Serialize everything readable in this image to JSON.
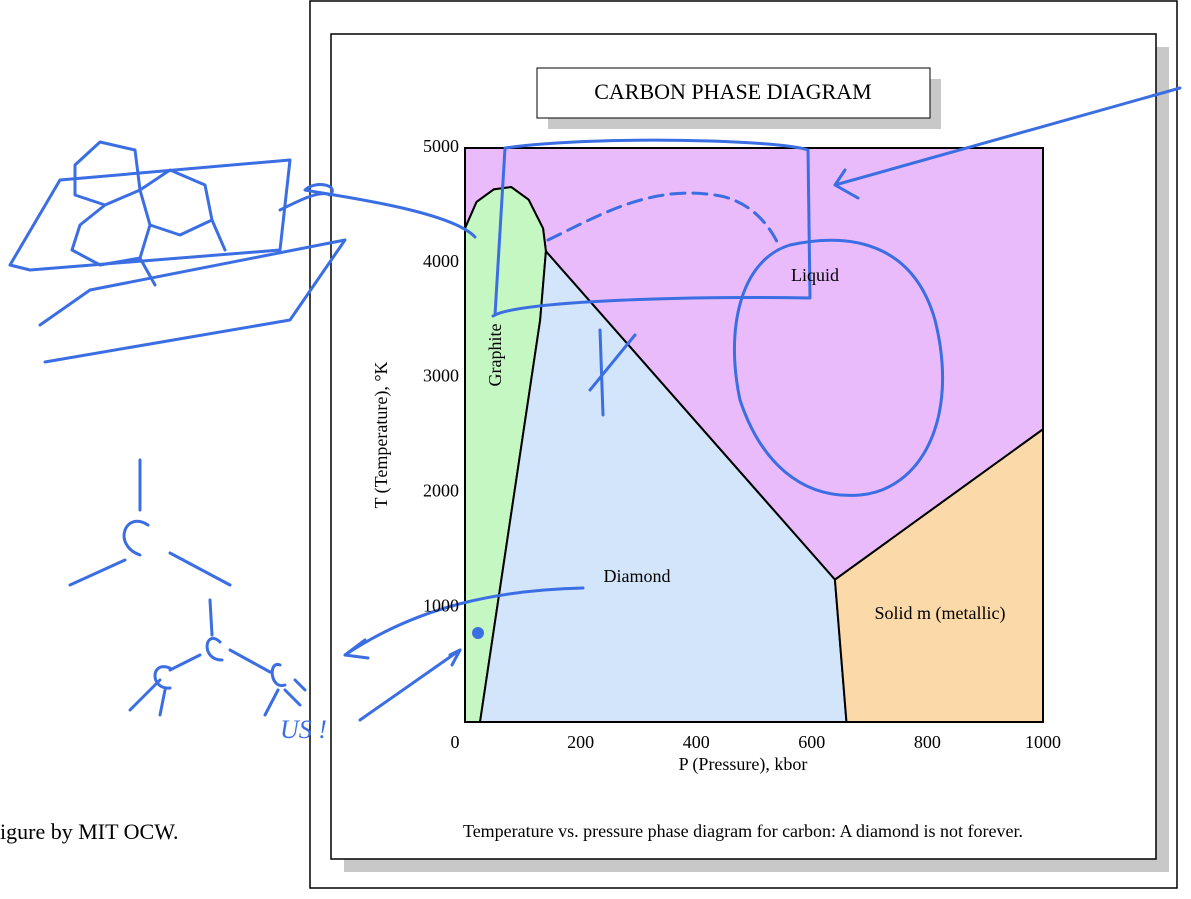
{
  "chart_data": {
    "type": "phase-diagram",
    "title": "CARBON PHASE DIAGRAM",
    "x_label": "P (Pressure), kbor",
    "y_label": "T (Temperature), °K",
    "caption": "Temperature vs. pressure phase diagram for carbon:  A diamond is not forever.",
    "credit": "igure by MIT OCW.",
    "annotation": "US !",
    "xlim": [
      0,
      1000
    ],
    "ylim": [
      0,
      5000
    ],
    "xticks": [
      0,
      200,
      400,
      600,
      800,
      1000
    ],
    "yticks": [
      1000,
      2000,
      3000,
      4000,
      5000
    ],
    "regions": [
      {
        "name": "Liquid",
        "color": "#e9bbfb",
        "x": [
          0,
          1000,
          1000,
          640,
          140,
          135,
          110,
          80,
          50,
          20,
          0
        ],
        "y": [
          5000,
          5000,
          2550,
          1240,
          4100,
          4300,
          4550,
          4660,
          4640,
          4530,
          4300
        ]
      },
      {
        "name": "Graphite",
        "color": "#c5f7c2",
        "x": [
          0,
          0,
          20,
          50,
          80,
          110,
          135,
          140,
          130,
          26
        ],
        "y": [
          0,
          4300,
          4530,
          4640,
          4660,
          4550,
          4300,
          4100,
          3500,
          0
        ]
      },
      {
        "name": "Diamond",
        "color": "#d3e5fb",
        "x": [
          26,
          130,
          140,
          640,
          660
        ],
        "y": [
          0,
          3500,
          4100,
          1240,
          0
        ]
      },
      {
        "name": "Solid m (metallic)",
        "color": "#fbd9a9",
        "x": [
          640,
          1000,
          1000,
          660
        ],
        "y": [
          1240,
          2550,
          0,
          0
        ]
      }
    ]
  }
}
